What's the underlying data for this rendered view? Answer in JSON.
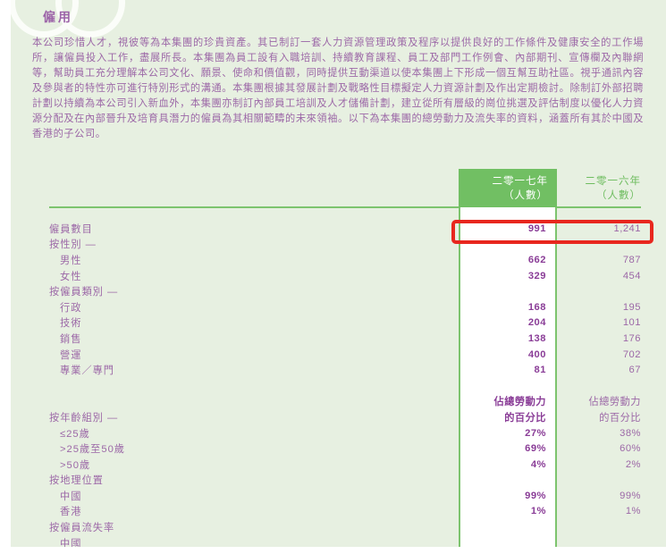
{
  "heading": "僱用",
  "paragraph": "本公司珍惜人才，視彼等為本集團的珍貴資產。其已制訂一套人力資源管理政策及程序以提供良好的工作條件及健康安全的工作場所，讓僱員投入工作，盡展所長。本集團為員工設有入職培訓、持續教育課程、員工及部門工作例會、內部期刊、宣傳欄及內聯網等，幫助員工充分理解本公司文化、願景、使命和價值觀，同時提供互動渠道以使本集團上下形成一個互幫互助社區。視乎通訊內容及參與者的特性亦可進行特別形式的溝通。本集團根據其發展計劃及戰略性目標擬定人力資源計劃及作出定期檢討。除制訂外部招聘計劃以持續為本公司引入新血外，本集團亦制訂內部員工培訓及人才儲備計劃，建立從所有層級的崗位挑選及評估制度以優化人力資源分配及在內部晉升及培育具潛力的僱員為其相關範疇的未來領袖。以下為本集團的總勞動力及流失率的資料，涵蓋所有其於中國及香港的子公司。",
  "table": {
    "columns": {
      "y2017": {
        "line1": "二零一七年",
        "line2": "（人數）"
      },
      "y2016": {
        "line1": "二零一六年",
        "line2": "（人數）"
      }
    },
    "rows": [
      {
        "label": "僱員數目",
        "indent": false,
        "v2017": "991",
        "v2016": "1,241",
        "highlight": true
      },
      {
        "label": "按性別 —",
        "indent": false,
        "v2017": "",
        "v2016": ""
      },
      {
        "label": "男性",
        "indent": true,
        "v2017": "662",
        "v2016": "787"
      },
      {
        "label": "女性",
        "indent": true,
        "v2017": "329",
        "v2016": "454"
      },
      {
        "label": "按僱員類別 —",
        "indent": false,
        "v2017": "",
        "v2016": ""
      },
      {
        "label": "行政",
        "indent": true,
        "v2017": "168",
        "v2016": "195"
      },
      {
        "label": "技術",
        "indent": true,
        "v2017": "204",
        "v2016": "101"
      },
      {
        "label": "銷售",
        "indent": true,
        "v2017": "138",
        "v2016": "176"
      },
      {
        "label": "營運",
        "indent": true,
        "v2017": "400",
        "v2016": "702"
      },
      {
        "label": "專業／專門",
        "indent": true,
        "v2017": "81",
        "v2016": "67"
      },
      {
        "label": "",
        "indent": false,
        "v2017": "",
        "v2016": ""
      },
      {
        "label": "",
        "indent": false,
        "v2017": "佔總勞動力",
        "v2016": "佔總勞動力"
      },
      {
        "label": "按年齡組別 —",
        "indent": false,
        "v2017": "的百分比",
        "v2016": "的百分比"
      },
      {
        "label": "≤25歲",
        "indent": true,
        "v2017": "27%",
        "v2016": "38%"
      },
      {
        "label": ">25歲至50歲",
        "indent": true,
        "v2017": "69%",
        "v2016": "60%"
      },
      {
        "label": ">50歲",
        "indent": true,
        "v2017": "4%",
        "v2016": "2%"
      },
      {
        "label": "按地理位置",
        "indent": false,
        "v2017": "",
        "v2016": ""
      },
      {
        "label": "中國",
        "indent": true,
        "v2017": "99%",
        "v2016": "99%"
      },
      {
        "label": "香港",
        "indent": true,
        "v2017": "1%",
        "v2016": "1%"
      },
      {
        "label": "按僱員流失率",
        "indent": false,
        "v2017": "",
        "v2016": ""
      },
      {
        "label": "中國",
        "indent": true,
        "v2017": "",
        "v2016": ""
      }
    ]
  },
  "colors": {
    "page_bg": "#e7f0e1",
    "header_green": "#71bf63",
    "rule_green": "#7dc46e",
    "text_purple": "#9c68a7",
    "bold_value_purple": "#8a3d97",
    "highlight_red": "#e8271e",
    "header_text_2016": "#6fbd60"
  }
}
